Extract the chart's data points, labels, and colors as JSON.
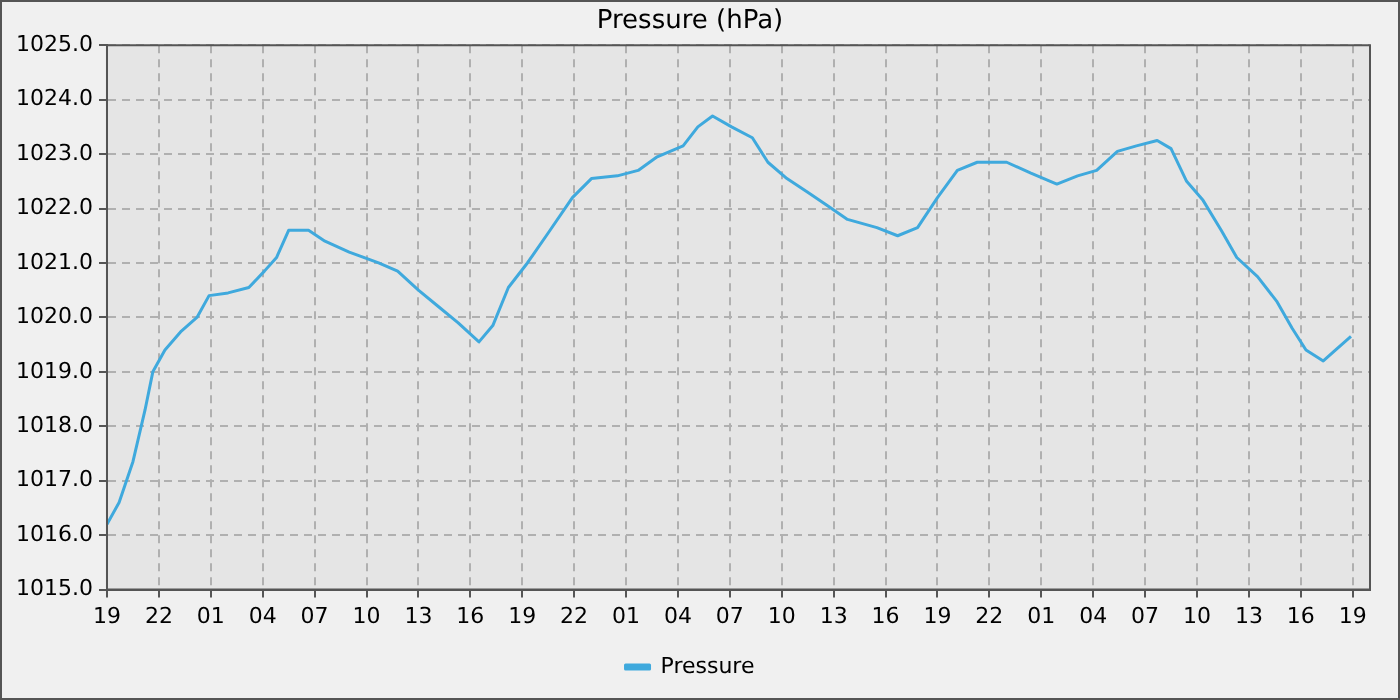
{
  "chart_data": {
    "type": "line",
    "title": "Pressure (hPa)",
    "legend": "bottom",
    "grid": true,
    "marker": "none",
    "line_style": "solid",
    "xlim": [
      "--01-01T19:00",
      "--01-04T20:00"
    ],
    "xticks": [
      {
        "value": "--01-01T19:00",
        "label": "19"
      },
      {
        "value": "--01-01T22:00",
        "label": "22"
      },
      {
        "value": "--01-02T01:00",
        "label": "01"
      },
      {
        "value": "--01-02T04:00",
        "label": "04"
      },
      {
        "value": "--01-02T07:00",
        "label": "07"
      },
      {
        "value": "--01-02T10:00",
        "label": "10"
      },
      {
        "value": "--01-02T13:00",
        "label": "13"
      },
      {
        "value": "--01-02T16:00",
        "label": "16"
      },
      {
        "value": "--01-02T19:00",
        "label": "19"
      },
      {
        "value": "--01-02T22:00",
        "label": "22"
      },
      {
        "value": "--01-03T01:00",
        "label": "01"
      },
      {
        "value": "--01-03T04:00",
        "label": "04"
      },
      {
        "value": "--01-03T07:00",
        "label": "07"
      },
      {
        "value": "--01-03T10:00",
        "label": "10"
      },
      {
        "value": "--01-03T13:00",
        "label": "13"
      },
      {
        "value": "--01-03T16:00",
        "label": "16"
      },
      {
        "value": "--01-03T19:00",
        "label": "19"
      },
      {
        "value": "--01-03T22:00",
        "label": "22"
      },
      {
        "value": "--01-04T01:00",
        "label": "01"
      },
      {
        "value": "--01-04T04:00",
        "label": "04"
      },
      {
        "value": "--01-04T07:00",
        "label": "07"
      },
      {
        "value": "--01-04T10:00",
        "label": "10"
      },
      {
        "value": "--01-04T13:00",
        "label": "13"
      },
      {
        "value": "--01-04T16:00",
        "label": "16"
      },
      {
        "value": "--01-04T19:00",
        "label": "19"
      }
    ],
    "ylim": [
      1015,
      1025
    ],
    "yticks": [
      {
        "value": 1015,
        "label": "1015.0"
      },
      {
        "value": 1016,
        "label": "1016.0"
      },
      {
        "value": 1017,
        "label": "1017.0"
      },
      {
        "value": 1018,
        "label": "1018.0"
      },
      {
        "value": 1019,
        "label": "1019.0"
      },
      {
        "value": 1020,
        "label": "1020.0"
      },
      {
        "value": 1021,
        "label": "1021.0"
      },
      {
        "value": 1022,
        "label": "1022.0"
      },
      {
        "value": 1023,
        "label": "1023.0"
      },
      {
        "value": 1024,
        "label": "1024.0"
      },
      {
        "value": 1025,
        "label": "1025.0"
      }
    ],
    "series": [
      {
        "name": "Pressure",
        "color": "#3fa9dd",
        "x": [
          "--01-01T19:00",
          "--01-01T19:42",
          "--01-01T20:30",
          "--01-01T21:12",
          "--01-01T21:39",
          "--01-01T22:21",
          "--01-01T23:18",
          "--01-02T00:12",
          "--01-02T00:54",
          "--01-02T02:00",
          "--01-02T03:12",
          "--01-02T04:06",
          "--01-02T04:48",
          "--01-02T05:30",
          "--01-02T06:39",
          "--01-02T07:36",
          "--01-02T09:00",
          "--01-02T10:42",
          "--01-02T11:48",
          "--01-02T13:00",
          "--01-02T14:09",
          "--01-02T15:18",
          "--01-02T16:30",
          "--01-02T17:18",
          "--01-02T18:12",
          "--01-02T19:18",
          "--01-02T20:30",
          "--01-02T21:54",
          "--01-02T23:00",
          "--01-03T00:30",
          "--01-03T01:42",
          "--01-03T02:48",
          "--01-03T04:18",
          "--01-03T05:09",
          "--01-03T06:00",
          "--01-03T07:06",
          "--01-03T08:18",
          "--01-03T09:12",
          "--01-03T10:18",
          "--01-03T11:30",
          "--01-03T12:39",
          "--01-03T13:48",
          "--01-03T15:30",
          "--01-03T16:42",
          "--01-03T17:51",
          "--01-03T19:00",
          "--01-03T20:09",
          "--01-03T21:18",
          "--01-03T23:00",
          "--01-04T00:24",
          "--01-04T01:54",
          "--01-04T03:06",
          "--01-04T04:12",
          "--01-04T05:24",
          "--01-04T06:30",
          "--01-04T07:42",
          "--01-04T08:30",
          "--01-04T09:24",
          "--01-04T10:21",
          "--01-04T11:24",
          "--01-04T12:18",
          "--01-04T13:30",
          "--01-04T14:36",
          "--01-04T15:30",
          "--01-04T16:18",
          "--01-04T17:18",
          "--01-04T18:00",
          "--01-04T18:54"
        ],
        "values": [
          1016.2,
          1016.6,
          1017.35,
          1018.3,
          1019.0,
          1019.4,
          1019.75,
          1020.0,
          1020.4,
          1020.45,
          1020.55,
          1020.85,
          1021.1,
          1021.6,
          1021.6,
          1021.4,
          1021.2,
          1021.0,
          1020.85,
          1020.5,
          1020.2,
          1019.9,
          1019.55,
          1019.85,
          1020.55,
          1021.0,
          1021.55,
          1022.2,
          1022.55,
          1022.6,
          1022.7,
          1022.95,
          1023.15,
          1023.5,
          1023.7,
          1023.5,
          1023.3,
          1022.85,
          1022.55,
          1022.3,
          1022.05,
          1021.8,
          1021.65,
          1021.5,
          1021.65,
          1022.2,
          1022.7,
          1022.85,
          1022.85,
          1022.65,
          1022.45,
          1022.6,
          1022.7,
          1023.05,
          1023.15,
          1023.25,
          1023.1,
          1022.5,
          1022.15,
          1021.6,
          1021.1,
          1020.75,
          1020.3,
          1019.8,
          1019.4,
          1019.2,
          1019.4,
          1019.65
        ]
      }
    ]
  }
}
